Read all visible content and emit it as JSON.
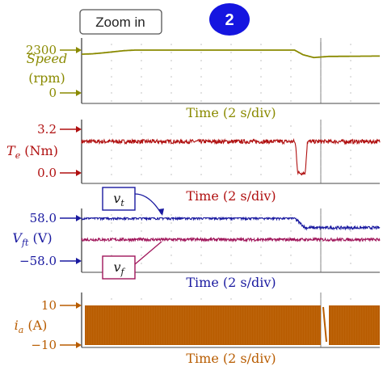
{
  "header": {
    "zoom_label": "Zoom in",
    "badge_label": "2",
    "badge_color": "#1515e0"
  },
  "chart_data": [
    {
      "type": "line",
      "title": "",
      "xlabel": "Time (2 s/div)",
      "ylabel_name": "Speed",
      "ylabel_unit": "(rpm)",
      "color": "#8a8a00",
      "ticks": [
        {
          "label": "2300",
          "value": 2300
        },
        {
          "label": "0",
          "value": 0
        }
      ],
      "ylim": [
        0,
        2300
      ],
      "grid": true,
      "series": [
        {
          "name": "",
          "x": [
            0.0,
            0.5,
            1.0,
            2.0,
            2.5,
            9.0,
            10.0,
            10.4,
            10.9,
            11.6,
            14.0
          ],
          "y": [
            2080,
            2100,
            2150,
            2270,
            2300,
            2300,
            2300,
            2050,
            1900,
            1960,
            1980
          ]
        }
      ]
    },
    {
      "type": "line",
      "title": "",
      "xlabel": "Time (2 s/div)",
      "ylabel_name": "T",
      "ylabel_sub": "e",
      "ylabel_unit": "(Nm)",
      "color": "#b01010",
      "ticks": [
        {
          "label": "3.2",
          "value": 3.2
        },
        {
          "label": "0.0",
          "value": 0.0
        }
      ],
      "ylim": [
        0,
        3.2
      ],
      "grid": true,
      "series": [
        {
          "name": "",
          "x": [
            0,
            10,
            10.05,
            10.15,
            10.5,
            10.6,
            14
          ],
          "y": [
            2.3,
            2.3,
            2.0,
            0.0,
            0.0,
            2.3,
            2.3
          ],
          "noise": 0.15
        }
      ]
    },
    {
      "type": "line",
      "title": "",
      "xlabel": "Time (2 s/div)",
      "ylabel_name": "V",
      "ylabel_sub": "ft",
      "ylabel_unit": "(V)",
      "color": "#1a1aa0",
      "ticks": [
        {
          "label": "58.0",
          "value": 58
        },
        {
          "label": "−58.0",
          "value": -58
        }
      ],
      "ylim": [
        -58,
        58
      ],
      "grid": true,
      "series": [
        {
          "name": "v",
          "name_sub": "t",
          "color": "#1a1aa0",
          "x": [
            0,
            10,
            10.5,
            14
          ],
          "y": [
            58,
            58,
            32,
            32
          ],
          "noise": 4
        },
        {
          "name": "v",
          "name_sub": "f",
          "color": "#a0155a",
          "x": [
            0,
            14
          ],
          "y": [
            0,
            0
          ],
          "noise": 4
        }
      ]
    },
    {
      "type": "area",
      "title": "",
      "xlabel": "Time (2 s/div)",
      "ylabel_name": "i",
      "ylabel_sub": "a",
      "ylabel_unit": "(A)",
      "color": "#b85c00",
      "ticks": [
        {
          "label": "10",
          "value": 10
        },
        {
          "label": "−10",
          "value": -10
        }
      ],
      "ylim": [
        -10,
        10
      ],
      "grid": true,
      "series": [
        {
          "name": "",
          "x": [
            0,
            14
          ],
          "y": [
            10,
            10
          ],
          "envelope": "symmetric"
        }
      ]
    }
  ]
}
